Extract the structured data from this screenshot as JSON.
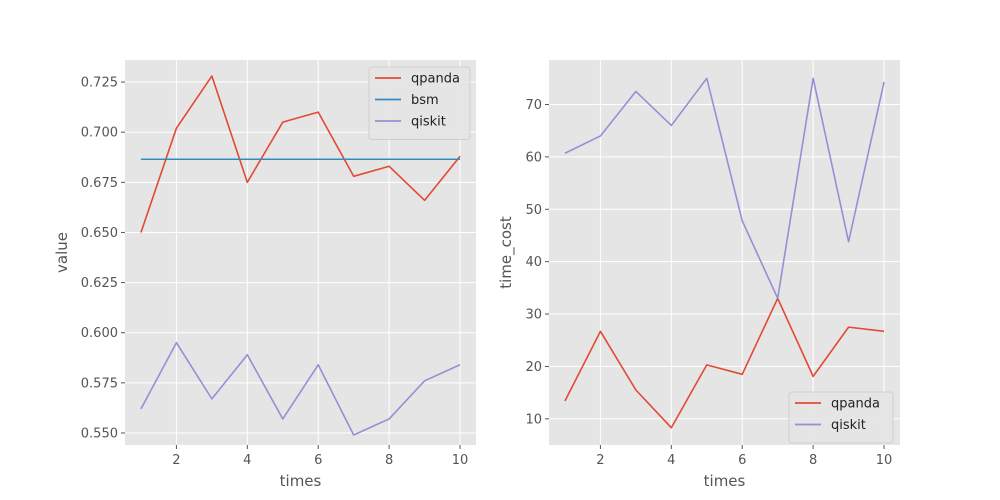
{
  "colors": {
    "background": "#e5e5e5",
    "grid": "#ffffff",
    "text": "#555555",
    "qpanda": "#e24a33",
    "bsm": "#348abd",
    "qiskit": "#988ed5"
  },
  "chart_data": [
    {
      "type": "line",
      "xlabel": "times",
      "ylabel": "value",
      "x": [
        1,
        2,
        3,
        4,
        5,
        6,
        7,
        8,
        9,
        10
      ],
      "xlim": [
        0.55,
        10.45
      ],
      "ylim": [
        0.544,
        0.736
      ],
      "x_ticks": [
        2,
        4,
        6,
        8,
        10
      ],
      "x_tick_labels": [
        "2",
        "4",
        "6",
        "8",
        "10"
      ],
      "y_ticks": [
        0.55,
        0.575,
        0.6,
        0.625,
        0.65,
        0.675,
        0.7,
        0.725
      ],
      "y_tick_labels": [
        "0.550",
        "0.575",
        "0.600",
        "0.625",
        "0.650",
        "0.675",
        "0.700",
        "0.725"
      ],
      "grid": true,
      "legend_position": "top-right",
      "series": [
        {
          "name": "qpanda",
          "color": "#e24a33",
          "values": [
            0.65,
            0.702,
            0.728,
            0.675,
            0.705,
            0.71,
            0.678,
            0.683,
            0.666,
            0.688
          ]
        },
        {
          "name": "bsm",
          "color": "#348abd",
          "values": [
            0.6865,
            0.6865,
            0.6865,
            0.6865,
            0.6865,
            0.6865,
            0.6865,
            0.6865,
            0.6865,
            0.6865
          ]
        },
        {
          "name": "qiskit",
          "color": "#988ed5",
          "values": [
            0.562,
            0.595,
            0.567,
            0.589,
            0.557,
            0.584,
            0.549,
            0.557,
            0.576,
            0.584
          ]
        }
      ]
    },
    {
      "type": "line",
      "xlabel": "times",
      "ylabel": "time_cost",
      "x": [
        1,
        2,
        3,
        4,
        5,
        6,
        7,
        8,
        9,
        10
      ],
      "xlim": [
        0.55,
        10.45
      ],
      "ylim": [
        5.0,
        78.5
      ],
      "x_ticks": [
        2,
        4,
        6,
        8,
        10
      ],
      "x_tick_labels": [
        "2",
        "4",
        "6",
        "8",
        "10"
      ],
      "y_ticks": [
        10,
        20,
        30,
        40,
        50,
        60,
        70
      ],
      "y_tick_labels": [
        "10",
        "20",
        "30",
        "40",
        "50",
        "60",
        "70"
      ],
      "grid": true,
      "legend_position": "bottom-right",
      "series": [
        {
          "name": "qpanda",
          "color": "#e24a33",
          "values": [
            13.4,
            26.7,
            15.5,
            8.3,
            20.3,
            18.5,
            33.0,
            18.1,
            27.5,
            26.7
          ]
        },
        {
          "name": "qiskit",
          "color": "#988ed5",
          "values": [
            60.7,
            64.0,
            72.5,
            66.0,
            75.0,
            47.8,
            33.0,
            75.0,
            43.8,
            74.3
          ]
        }
      ]
    }
  ]
}
